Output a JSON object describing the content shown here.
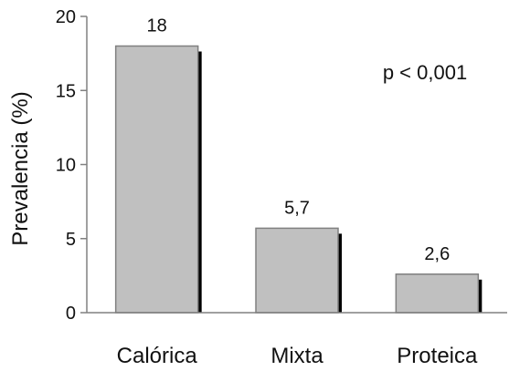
{
  "chart_data": {
    "type": "bar",
    "categories": [
      "Calórica",
      "Mixta",
      "Proteica"
    ],
    "values": [
      18,
      5.7,
      2.6
    ],
    "data_labels": [
      "18",
      "5,7",
      "2,6"
    ],
    "title": "",
    "xlabel": "",
    "ylabel": "Prevalencia (%)",
    "ylim": [
      0,
      20
    ],
    "yticks": [
      0,
      5,
      10,
      15,
      20
    ],
    "ytick_labels": [
      "0",
      "5",
      "10",
      "15",
      "20"
    ],
    "grid": false,
    "annotation": "p < 0,001",
    "colors": {
      "bar_fill": "#c0c0c0",
      "bar_stroke": "#808080",
      "bar_shadow": "#000000",
      "axis": "#808080"
    }
  }
}
